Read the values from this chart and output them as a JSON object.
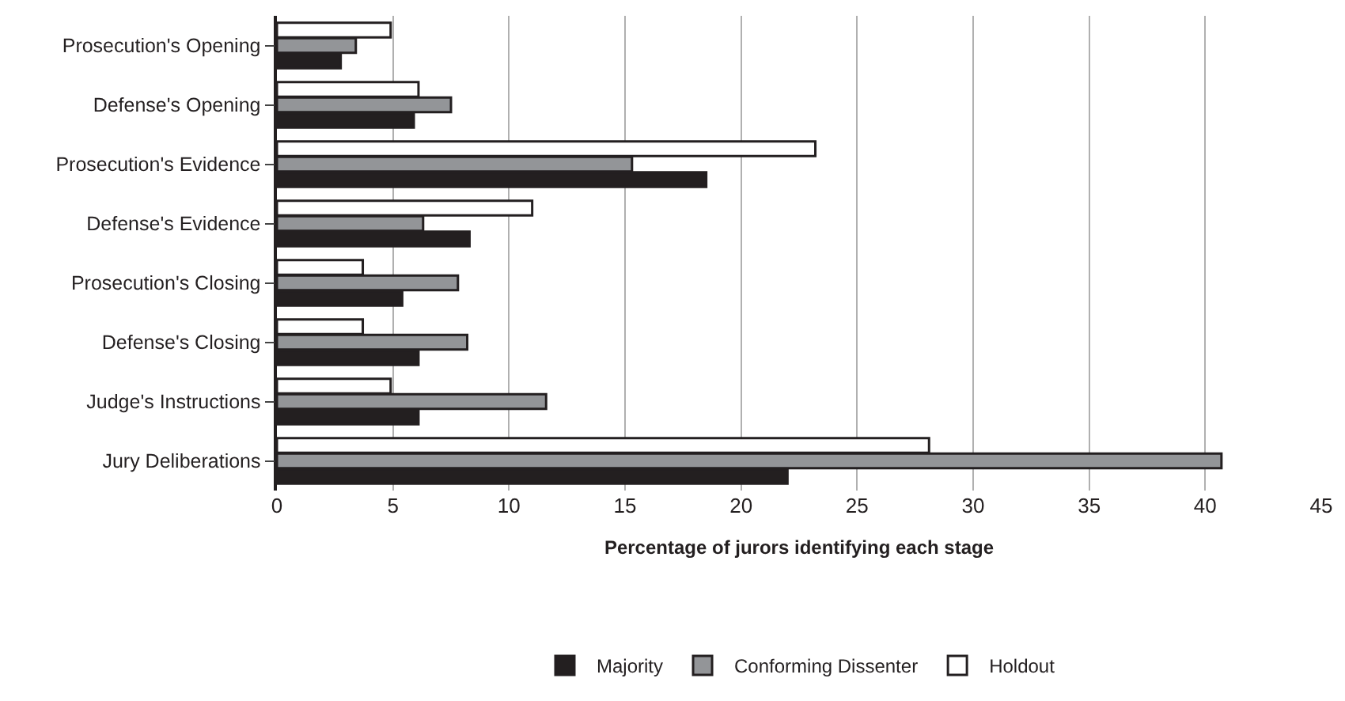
{
  "chart_data": {
    "type": "bar",
    "orientation": "horizontal",
    "categories": [
      "Prosecution's Opening",
      "Defense's Opening",
      "Prosecution's Evidence",
      "Defense's Evidence",
      "Prosecution's Closing",
      "Defense's Closing",
      "Judge's Instructions",
      "Jury Deliberations"
    ],
    "series": [
      {
        "name": "Majority",
        "color": "#231f20",
        "values": [
          2.75,
          5.9,
          18.5,
          8.3,
          5.4,
          6.1,
          6.1,
          22.0
        ]
      },
      {
        "name": "Conforming Dissenter",
        "color": "#939598",
        "values": [
          3.4,
          7.5,
          15.3,
          6.3,
          7.8,
          8.2,
          11.6,
          40.7
        ]
      },
      {
        "name": "Holdout",
        "color": "#ffffff",
        "values": [
          4.9,
          6.1,
          23.2,
          11.0,
          3.7,
          3.7,
          4.9,
          28.1
        ]
      }
    ],
    "xlabel": "Percentage of jurors identifying each stage",
    "xlim": [
      0,
      45
    ],
    "xticks": [
      0,
      5,
      10,
      15,
      20,
      25,
      30,
      35,
      40,
      45
    ],
    "grid": "x",
    "legend": "bottom"
  }
}
